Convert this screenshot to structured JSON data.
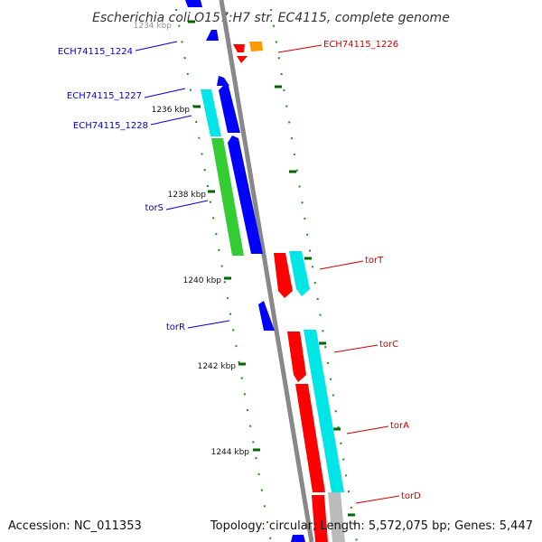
{
  "title": "Escherichia coli O157:H7 str. EC4115, complete genome",
  "footer": {
    "accession": "Accession: NC_011353",
    "summary": "Topology: circular; Length: 5,572,075 bp; Genes: 5,447"
  },
  "ticks": [
    "1234 kbp",
    "1236 kbp",
    "1238 kbp",
    "1240 kbp",
    "1242 kbp",
    "1244 kbp"
  ],
  "genes": {
    "left": [
      "ECH74115_1224",
      "ECH74115_1227",
      "ECH74115_1228",
      "torS",
      "torR"
    ],
    "right": [
      "ECH74115_1226",
      "torT",
      "torC",
      "torA",
      "torD"
    ]
  },
  "colors": {
    "backbone": "#888888",
    "reverse_strand": "#0000ff",
    "forward_strand": "#ff0000",
    "cyan": "#00e5e5",
    "green": "#33cc33",
    "orange": "#ff9900",
    "tick_mark": "#006600"
  }
}
